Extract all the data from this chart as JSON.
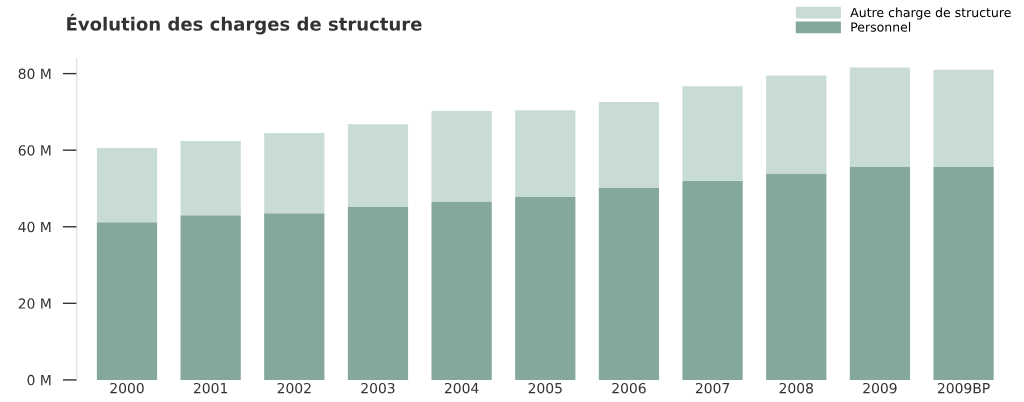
{
  "chart_data": {
    "type": "bar",
    "title": "Évolution des charges de structure",
    "stacked": true,
    "categories": [
      "2000",
      "2001",
      "2002",
      "2003",
      "2004",
      "2005",
      "2006",
      "2007",
      "2008",
      "2009",
      "2009BP"
    ],
    "series": [
      {
        "name": "Personnel",
        "color": "#84a79e",
        "values": [
          41.2,
          43.0,
          43.5,
          45.3,
          46.6,
          47.8,
          50.1,
          52.0,
          53.9,
          55.6,
          55.6
        ]
      },
      {
        "name": "Autre charge de structure",
        "color": "#c9dbd7",
        "values": [
          19.4,
          19.4,
          21.0,
          21.5,
          23.6,
          22.6,
          22.5,
          24.7,
          25.6,
          26.0,
          25.4
        ]
      }
    ],
    "ylim": [
      0,
      84
    ],
    "yticks": [
      {
        "value": 0,
        "label": "0 M"
      },
      {
        "value": 20,
        "label": "20 M"
      },
      {
        "value": 40,
        "label": "40 M"
      },
      {
        "value": 60,
        "label": "60 M"
      },
      {
        "value": 80,
        "label": "80 M"
      }
    ],
    "legend": "top right",
    "grid": false
  }
}
